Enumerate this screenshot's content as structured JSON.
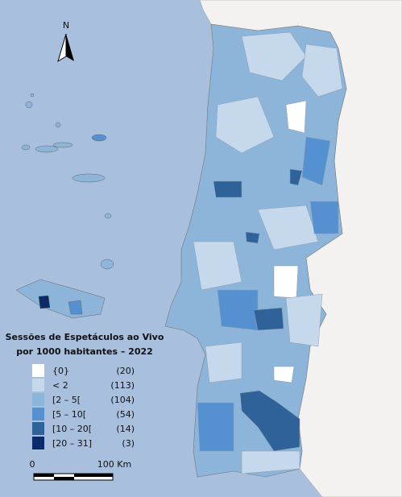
{
  "north_label": "N",
  "legend": {
    "title_line1": "Sessões de Espetáculos ao Vivo",
    "title_line2": "por 1000 habitantes – 2022",
    "items": [
      {
        "label": "{0}",
        "count": "(20)",
        "color": "#ffffff"
      },
      {
        "label": "< 2",
        "count": "(113)",
        "color": "#c6d9ec"
      },
      {
        "label": "[2 – 5[",
        "count": "(104)",
        "color": "#8db4d9"
      },
      {
        "label": "[5 – 10[",
        "count": "(54)",
        "color": "#5590d0"
      },
      {
        "label": "[10 – 20[",
        "count": "(14)",
        "color": "#2e6299"
      },
      {
        "label": "[20 – 31]",
        "count": "(3)",
        "color": "#0a2a6a"
      }
    ]
  },
  "scale": {
    "start_label": "0",
    "end_label": "100 Km"
  }
}
